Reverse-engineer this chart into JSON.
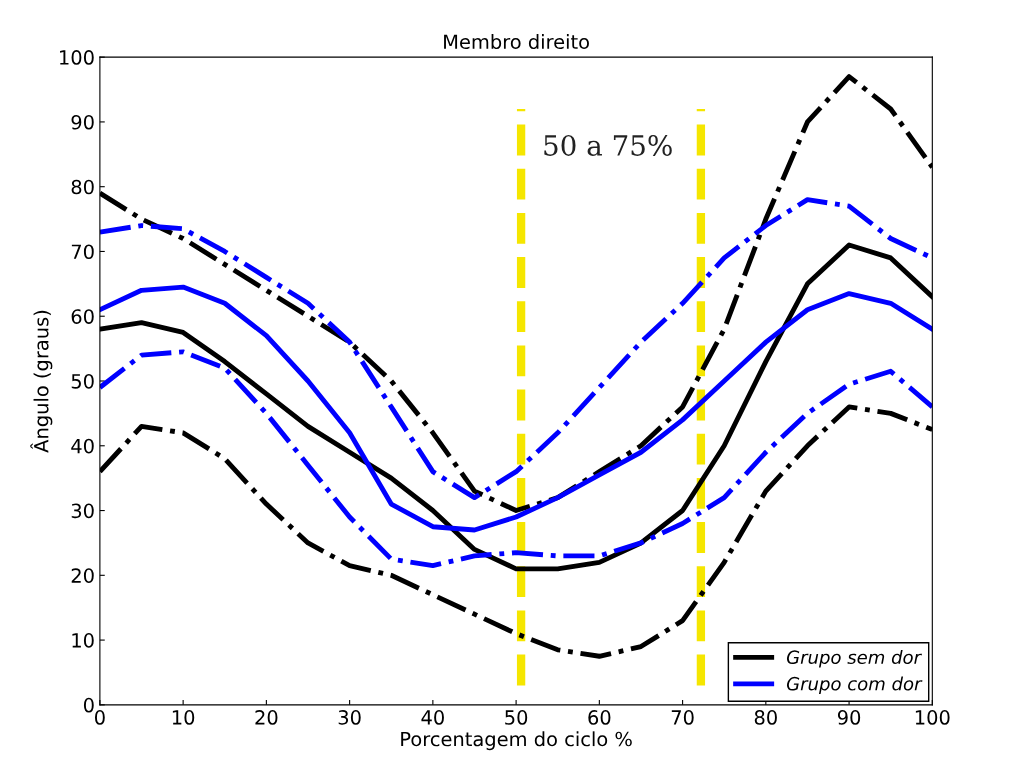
{
  "chart_data": {
    "type": "line",
    "title": "Membro direito",
    "xlabel": "Porcentagem do ciclo %",
    "ylabel": "Ângulo (graus)",
    "x": [
      0,
      5,
      10,
      15,
      20,
      25,
      30,
      35,
      40,
      45,
      50,
      55,
      60,
      65,
      70,
      75,
      80,
      85,
      90,
      95,
      100
    ],
    "xlim": [
      0,
      100
    ],
    "xticks": [
      0,
      10,
      20,
      30,
      40,
      50,
      60,
      70,
      80,
      90,
      100
    ],
    "ylim": [
      0,
      100
    ],
    "yticks": [
      0,
      10,
      20,
      30,
      40,
      50,
      60,
      70,
      80,
      90,
      100
    ],
    "grid": false,
    "legend": "bottom right",
    "marker": "none",
    "series": [
      {
        "name": "Grupo sem dor",
        "color": "#000000",
        "line_style": "solid",
        "values": [
          58,
          59,
          57.5,
          53,
          48,
          43,
          39,
          35,
          30,
          24,
          21,
          21,
          22,
          25,
          30,
          40,
          53,
          65,
          71,
          69,
          63
        ]
      },
      {
        "color": "#000000",
        "line_style": "dashdot",
        "values": [
          79,
          75,
          72,
          68,
          64,
          60,
          56,
          50,
          42,
          33,
          30,
          32,
          36,
          40,
          46,
          58,
          75,
          90,
          97,
          92,
          83
        ]
      },
      {
        "color": "#000000",
        "line_style": "dashdot",
        "values": [
          36,
          43,
          42,
          38,
          31,
          25,
          21.5,
          20,
          17,
          14,
          11,
          8.5,
          7.5,
          9,
          13,
          22,
          33,
          40,
          46,
          45,
          42.5
        ]
      },
      {
        "name": "Grupo com dor",
        "color": "#0000ff",
        "line_style": "solid",
        "values": [
          61,
          64,
          64.5,
          62,
          57,
          50,
          42,
          31,
          27.5,
          27,
          29,
          32,
          35.5,
          39,
          44,
          50,
          56,
          61,
          63.5,
          62,
          58
        ]
      },
      {
        "color": "#0000ff",
        "line_style": "dashdot",
        "values": [
          73,
          74,
          73.5,
          70,
          66,
          62,
          56,
          46,
          36,
          32,
          36,
          42,
          49,
          56,
          62,
          69,
          74,
          78,
          77,
          72,
          69
        ]
      },
      {
        "color": "#0000ff",
        "line_style": "dashdot",
        "values": [
          49,
          54,
          54.5,
          52,
          45,
          37,
          29,
          22.5,
          21.5,
          23,
          23.5,
          23,
          23,
          25,
          28,
          32,
          39,
          45,
          49.5,
          51.5,
          46
        ]
      }
    ],
    "ref_lines": [
      {
        "axis": "x",
        "value": 50.6,
        "color": "#f5e600",
        "line_style": "dashed"
      },
      {
        "axis": "x",
        "value": 72.2,
        "color": "#f5e600",
        "line_style": "dashed"
      }
    ],
    "annotations": [
      "50 a 75%"
    ]
  }
}
